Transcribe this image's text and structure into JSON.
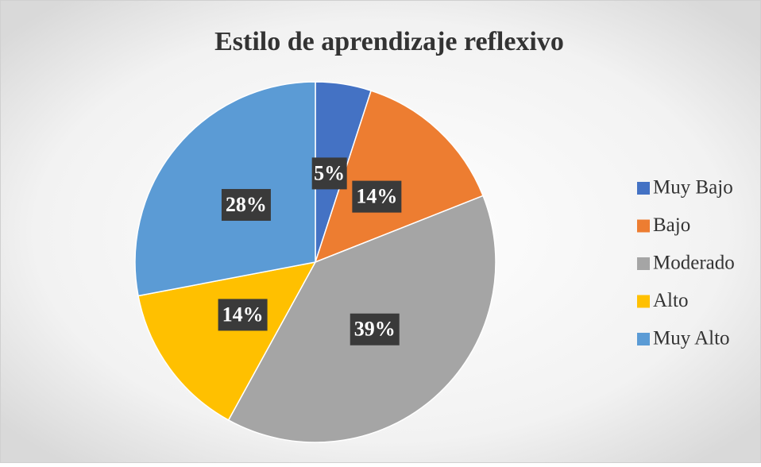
{
  "chart_data": {
    "type": "pie",
    "title": "Estilo de aprendizaje reflexivo",
    "categories": [
      "Muy Bajo",
      "Bajo",
      "Moderado",
      "Alto",
      "Muy Alto"
    ],
    "values": [
      5,
      14,
      39,
      14,
      28
    ],
    "value_labels": [
      "5%",
      "14%",
      "39%",
      "14%",
      "28%"
    ],
    "colors": [
      "#4472c4",
      "#ed7d31",
      "#a5a5a5",
      "#ffc000",
      "#5b9bd5"
    ],
    "legend": "right"
  }
}
